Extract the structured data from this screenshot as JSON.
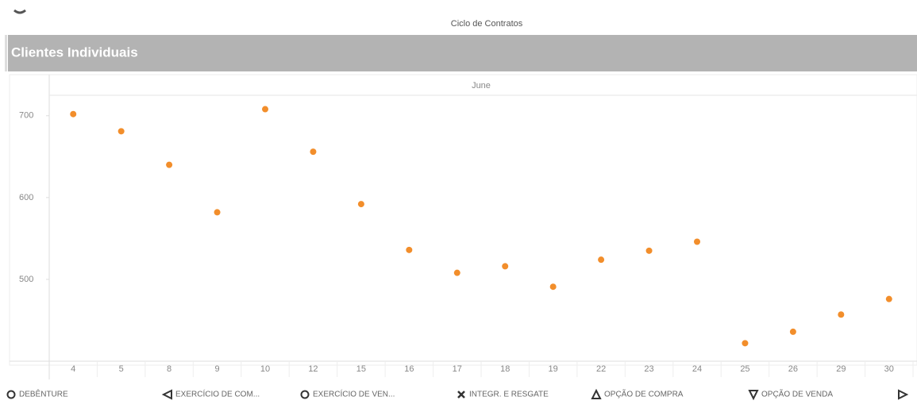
{
  "chart_data": {
    "type": "scatter",
    "title": "Ciclo de Contratos",
    "header": "Clientes Individuais",
    "column_header": "June",
    "categories": [
      "4",
      "5",
      "8",
      "9",
      "10",
      "12",
      "15",
      "16",
      "17",
      "18",
      "19",
      "22",
      "23",
      "24",
      "25",
      "26",
      "29",
      "30"
    ],
    "values": [
      702,
      681,
      640,
      582,
      708,
      656,
      592,
      536,
      508,
      516,
      491,
      524,
      535,
      546,
      422,
      436,
      457,
      476
    ],
    "color": "#f28e2b",
    "ylim": [
      400,
      725
    ],
    "yticks": [
      500,
      600,
      700
    ],
    "grid": false,
    "legend": [
      "DEBÊNTURE",
      "EXERCÍCIO DE COM...",
      "EXERCÍCIO DE VEN...",
      "INTEGR. E RESGATE",
      "OPÇÃO DE COMPRA",
      "OPÇÃO DE VENDA"
    ]
  }
}
